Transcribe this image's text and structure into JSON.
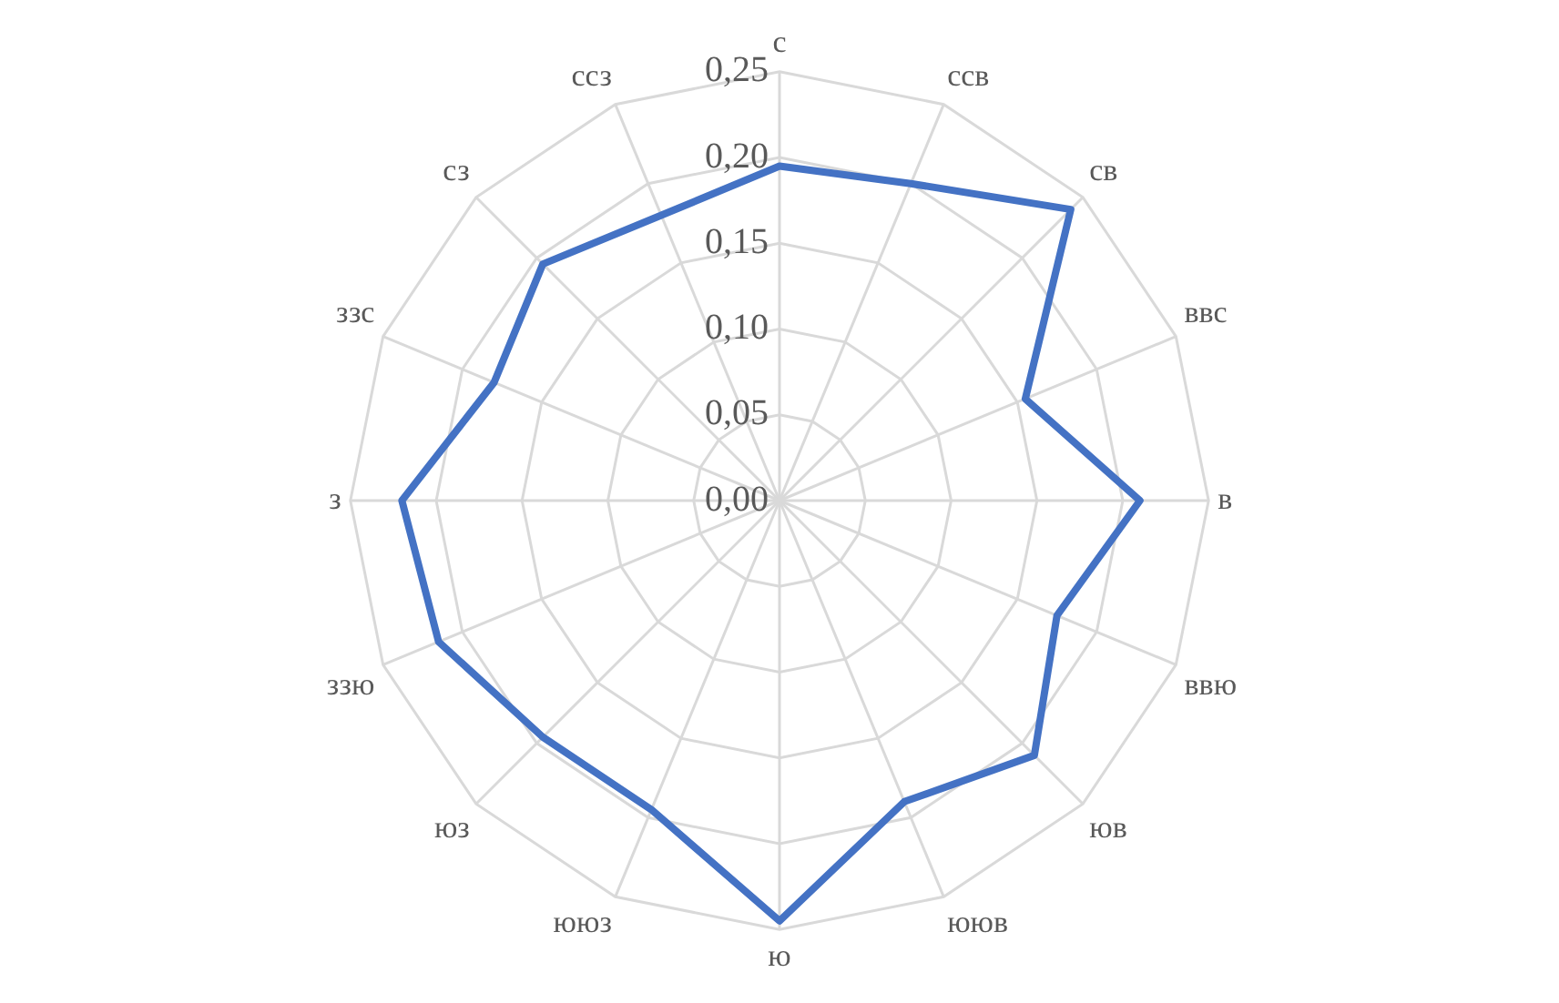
{
  "chart_data": {
    "type": "radar",
    "categories": [
      "с",
      "ссв",
      "св",
      "ввс",
      "в",
      "ввю",
      "юв",
      "ююв",
      "ю",
      "ююз",
      "юз",
      "ззю",
      "з",
      "ззс",
      "сз",
      "ссз"
    ],
    "series": [
      {
        "color": "#4472c4",
        "values": [
          0.195,
          0.2,
          0.24,
          0.155,
          0.21,
          0.175,
          0.21,
          0.19,
          0.245,
          0.195,
          0.195,
          0.215,
          0.22,
          0.18,
          0.195,
          0.18
        ]
      }
    ],
    "ylim": [
      0,
      0.25
    ],
    "yticks": [
      {
        "value": 0,
        "label": "0,00"
      },
      {
        "value": 0.05,
        "label": "0,05"
      },
      {
        "value": 0.1,
        "label": "0,10"
      },
      {
        "value": 0.15,
        "label": "0,15"
      },
      {
        "value": 0.2,
        "label": "0,20"
      },
      {
        "value": 0.25,
        "label": "0,25"
      }
    ],
    "grid": true,
    "legend": false,
    "marker": "none",
    "line_style": "solid"
  }
}
